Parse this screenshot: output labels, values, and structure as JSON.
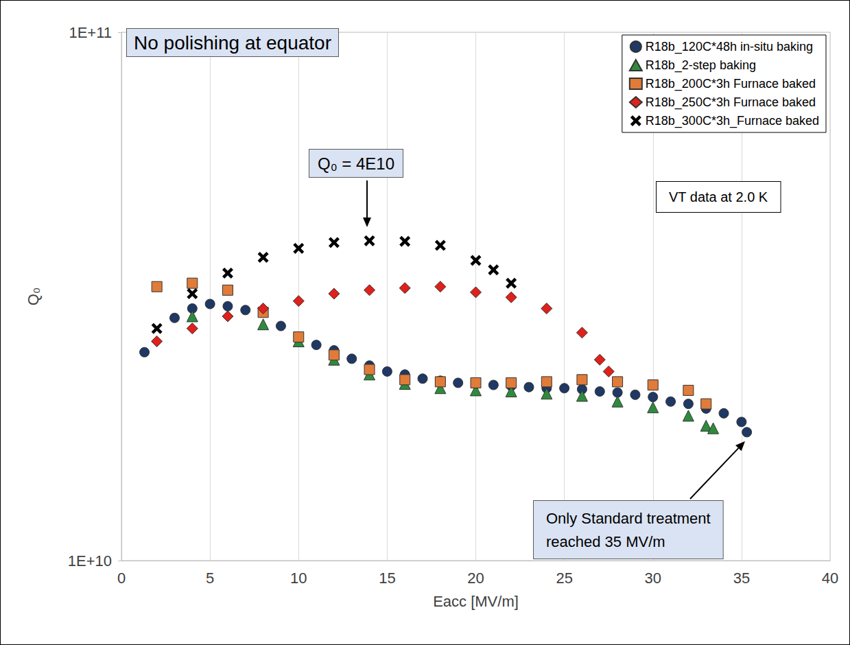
{
  "chart_data": {
    "type": "scatter",
    "x_label": "Eacc [MV/m]",
    "y_label": "Q₀",
    "annotations": [
      "No polishing at equator",
      "Q₀ = 4E10",
      "VT data at 2.0 K",
      "Only Standard treatment reached 35 MV/m"
    ],
    "xlim": [
      0,
      40
    ],
    "xticks": [
      0,
      5,
      10,
      15,
      20,
      25,
      30,
      35,
      40
    ],
    "ylim": [
      10000000000.0,
      100000000000.0
    ],
    "yticks": [
      {
        "value": 10000000000.0,
        "label": "1E+10"
      },
      {
        "value": 100000000000.0,
        "label": "1E+11"
      }
    ],
    "log": "y",
    "grid": true,
    "legend": "upper right",
    "series": [
      {
        "name": "R18b_120C*48h in-situ baking",
        "color": "#1f3864",
        "marker": "circle",
        "x": [
          1.3,
          3,
          4,
          5,
          6,
          7,
          9,
          11,
          12,
          13,
          14,
          15,
          16,
          17,
          18,
          19,
          20,
          21,
          22,
          23,
          24,
          25,
          26,
          27,
          28,
          29,
          30,
          31,
          32,
          33,
          34,
          35,
          35.3
        ],
        "values": [
          24800000000.0,
          28800000000.0,
          30000000000.0,
          30600000000.0,
          30300000000.0,
          29800000000.0,
          27800000000.0,
          25600000000.0,
          25000000000.0,
          24100000000.0,
          23400000000.0,
          22800000000.0,
          22500000000.0,
          22100000000.0,
          21900000000.0,
          21700000000.0,
          21600000000.0,
          21500000000.0,
          21400000000.0,
          21300000000.0,
          21200000000.0,
          21200000000.0,
          21100000000.0,
          20900000000.0,
          20800000000.0,
          20600000000.0,
          20400000000.0,
          20000000000.0,
          19800000000.0,
          19400000000.0,
          19000000000.0,
          18300000000.0,
          17500000000.0
        ]
      },
      {
        "name": "R18b_2-step baking",
        "color": "#2e8b3e",
        "marker": "triangle",
        "x": [
          4,
          8,
          10,
          12,
          14,
          16,
          18,
          20,
          22,
          24,
          26,
          28,
          30,
          32,
          33,
          33.4
        ],
        "values": [
          29000000000.0,
          28000000000.0,
          26000000000.0,
          24000000000.0,
          22500000000.0,
          21600000000.0,
          21200000000.0,
          21000000000.0,
          20900000000.0,
          20700000000.0,
          20500000000.0,
          20000000000.0,
          19500000000.0,
          18800000000.0,
          18000000000.0,
          17800000000.0
        ]
      },
      {
        "name": "R18b_200C*3h Furnace baked",
        "color": "#e07b39",
        "marker": "square",
        "x": [
          2,
          4,
          6,
          8,
          10,
          12,
          14,
          16,
          18,
          20,
          22,
          24,
          26,
          28,
          30,
          32,
          33
        ],
        "values": [
          33000000000.0,
          33500000000.0,
          32500000000.0,
          29500000000.0,
          26500000000.0,
          24500000000.0,
          23000000000.0,
          22000000000.0,
          21800000000.0,
          21700000000.0,
          21700000000.0,
          21800000000.0,
          22000000000.0,
          21800000000.0,
          21500000000.0,
          21000000000.0,
          19800000000.0
        ]
      },
      {
        "name": "R18b_250C*3h Furnace baked",
        "color": "#e0201b",
        "marker": "diamond",
        "x": [
          2,
          4,
          6,
          8,
          10,
          12,
          14,
          16,
          18,
          20,
          22,
          24,
          26,
          27,
          27.5
        ],
        "values": [
          26000000000.0,
          27500000000.0,
          29000000000.0,
          30000000000.0,
          31000000000.0,
          32000000000.0,
          32500000000.0,
          32800000000.0,
          33000000000.0,
          32200000000.0,
          31500000000.0,
          30000000000.0,
          27000000000.0,
          24000000000.0,
          22800000000.0
        ]
      },
      {
        "name": "R18b_300C*3h_Furnace baked",
        "color": "#000000",
        "marker": "asterisk",
        "x": [
          2,
          4,
          6,
          8,
          10,
          12,
          14,
          16,
          18,
          20,
          21,
          22
        ],
        "values": [
          27500000000.0,
          32000000000.0,
          35000000000.0,
          37500000000.0,
          39000000000.0,
          40000000000.0,
          40300000000.0,
          40200000000.0,
          39500000000.0,
          37000000000.0,
          35500000000.0,
          33500000000.0
        ]
      }
    ]
  }
}
